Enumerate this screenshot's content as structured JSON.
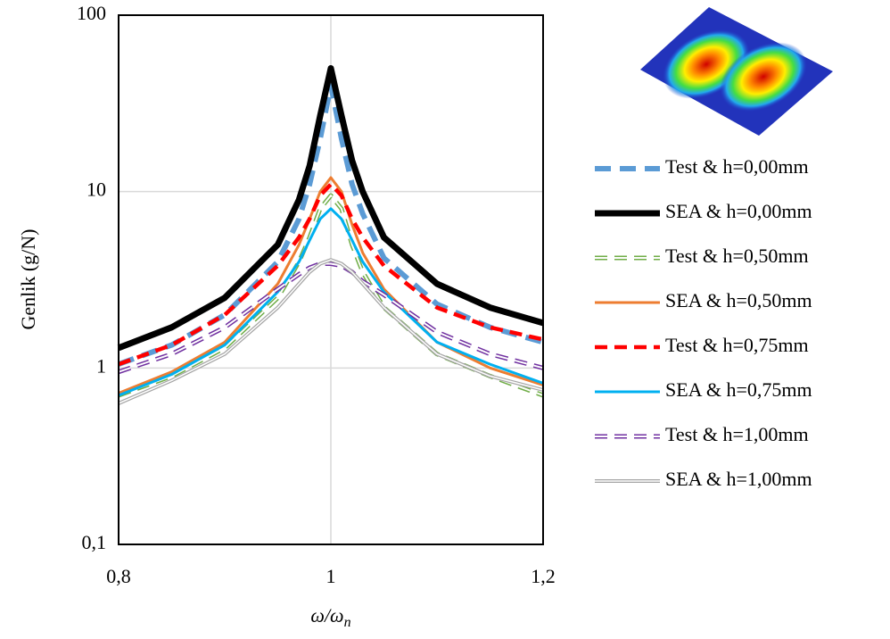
{
  "chart_data": {
    "type": "line",
    "log_y": true,
    "grid": true,
    "legend": "right",
    "y_label": "Genlik (g/N)",
    "x_label": [
      "ω/ω",
      "n"
    ],
    "xlim": [
      0.8,
      1.2
    ],
    "xticks": [
      {
        "value": 0.8,
        "label": "0,8"
      },
      1,
      {
        "value": 1.2,
        "label": "1,2"
      }
    ],
    "ylim": [
      0.1,
      100
    ],
    "yticks": [
      {
        "value": 0.1,
        "label": "0,1"
      },
      1,
      10,
      100
    ],
    "x": [
      0.8,
      0.85,
      0.9,
      0.95,
      0.97,
      0.98,
      0.99,
      1.0,
      1.01,
      1.02,
      1.03,
      1.05,
      1.1,
      1.15,
      1.2
    ],
    "series": [
      {
        "name": "Test & h=0,00mm",
        "color": "#5b9bd5",
        "style": "thick-dashed",
        "values": [
          1.05,
          1.35,
          2,
          4,
          7,
          11,
          20,
          40,
          20,
          11,
          7.5,
          4.2,
          2.3,
          1.7,
          1.4
        ]
      },
      {
        "name": "SEA & h=0,00mm",
        "color": "#000000",
        "style": "thick",
        "values": [
          1.3,
          1.7,
          2.5,
          5,
          9,
          14,
          27,
          50,
          27,
          15,
          10,
          5.5,
          3,
          2.2,
          1.8
        ]
      },
      {
        "name": "Test & h=0,50mm",
        "color": "#70ad47",
        "style": "double-dashed",
        "values": [
          0.7,
          0.9,
          1.3,
          2.5,
          4,
          5.5,
          8,
          9.5,
          8,
          5,
          3.5,
          2.2,
          1.2,
          0.9,
          0.7
        ]
      },
      {
        "name": "SEA & h=0,50mm",
        "color": "#ed7d31",
        "style": "solid",
        "values": [
          0.72,
          0.95,
          1.4,
          3,
          5,
          7,
          10,
          12,
          10,
          6.5,
          4.5,
          2.8,
          1.4,
          1,
          0.8
        ]
      },
      {
        "name": "Test & h=0,75mm",
        "color": "#ff0000",
        "style": "dashed",
        "values": [
          1.05,
          1.35,
          2,
          3.8,
          5.5,
          7,
          9.5,
          11,
          9.5,
          7,
          5.5,
          3.8,
          2.2,
          1.7,
          1.45
        ]
      },
      {
        "name": "SEA & h=0,75mm",
        "color": "#00b0f0",
        "style": "solid",
        "values": [
          0.7,
          0.92,
          1.35,
          2.7,
          4,
          5.3,
          7,
          8,
          7,
          5.3,
          4,
          2.7,
          1.4,
          1.05,
          0.82
        ]
      },
      {
        "name": "Test & h=1,00mm",
        "color": "#7030a0",
        "style": "double-dashed",
        "values": [
          0.95,
          1.2,
          1.7,
          2.8,
          3.4,
          3.7,
          3.9,
          3.9,
          3.8,
          3.5,
          3.1,
          2.6,
          1.6,
          1.2,
          1
        ]
      },
      {
        "name": "SEA & h=1,00mm",
        "color": "#a5a5a5",
        "style": "double",
        "values": [
          0.63,
          0.85,
          1.2,
          2.2,
          3,
          3.5,
          3.9,
          4.1,
          3.9,
          3.5,
          3,
          2.2,
          1.2,
          0.9,
          0.75
        ]
      }
    ]
  }
}
